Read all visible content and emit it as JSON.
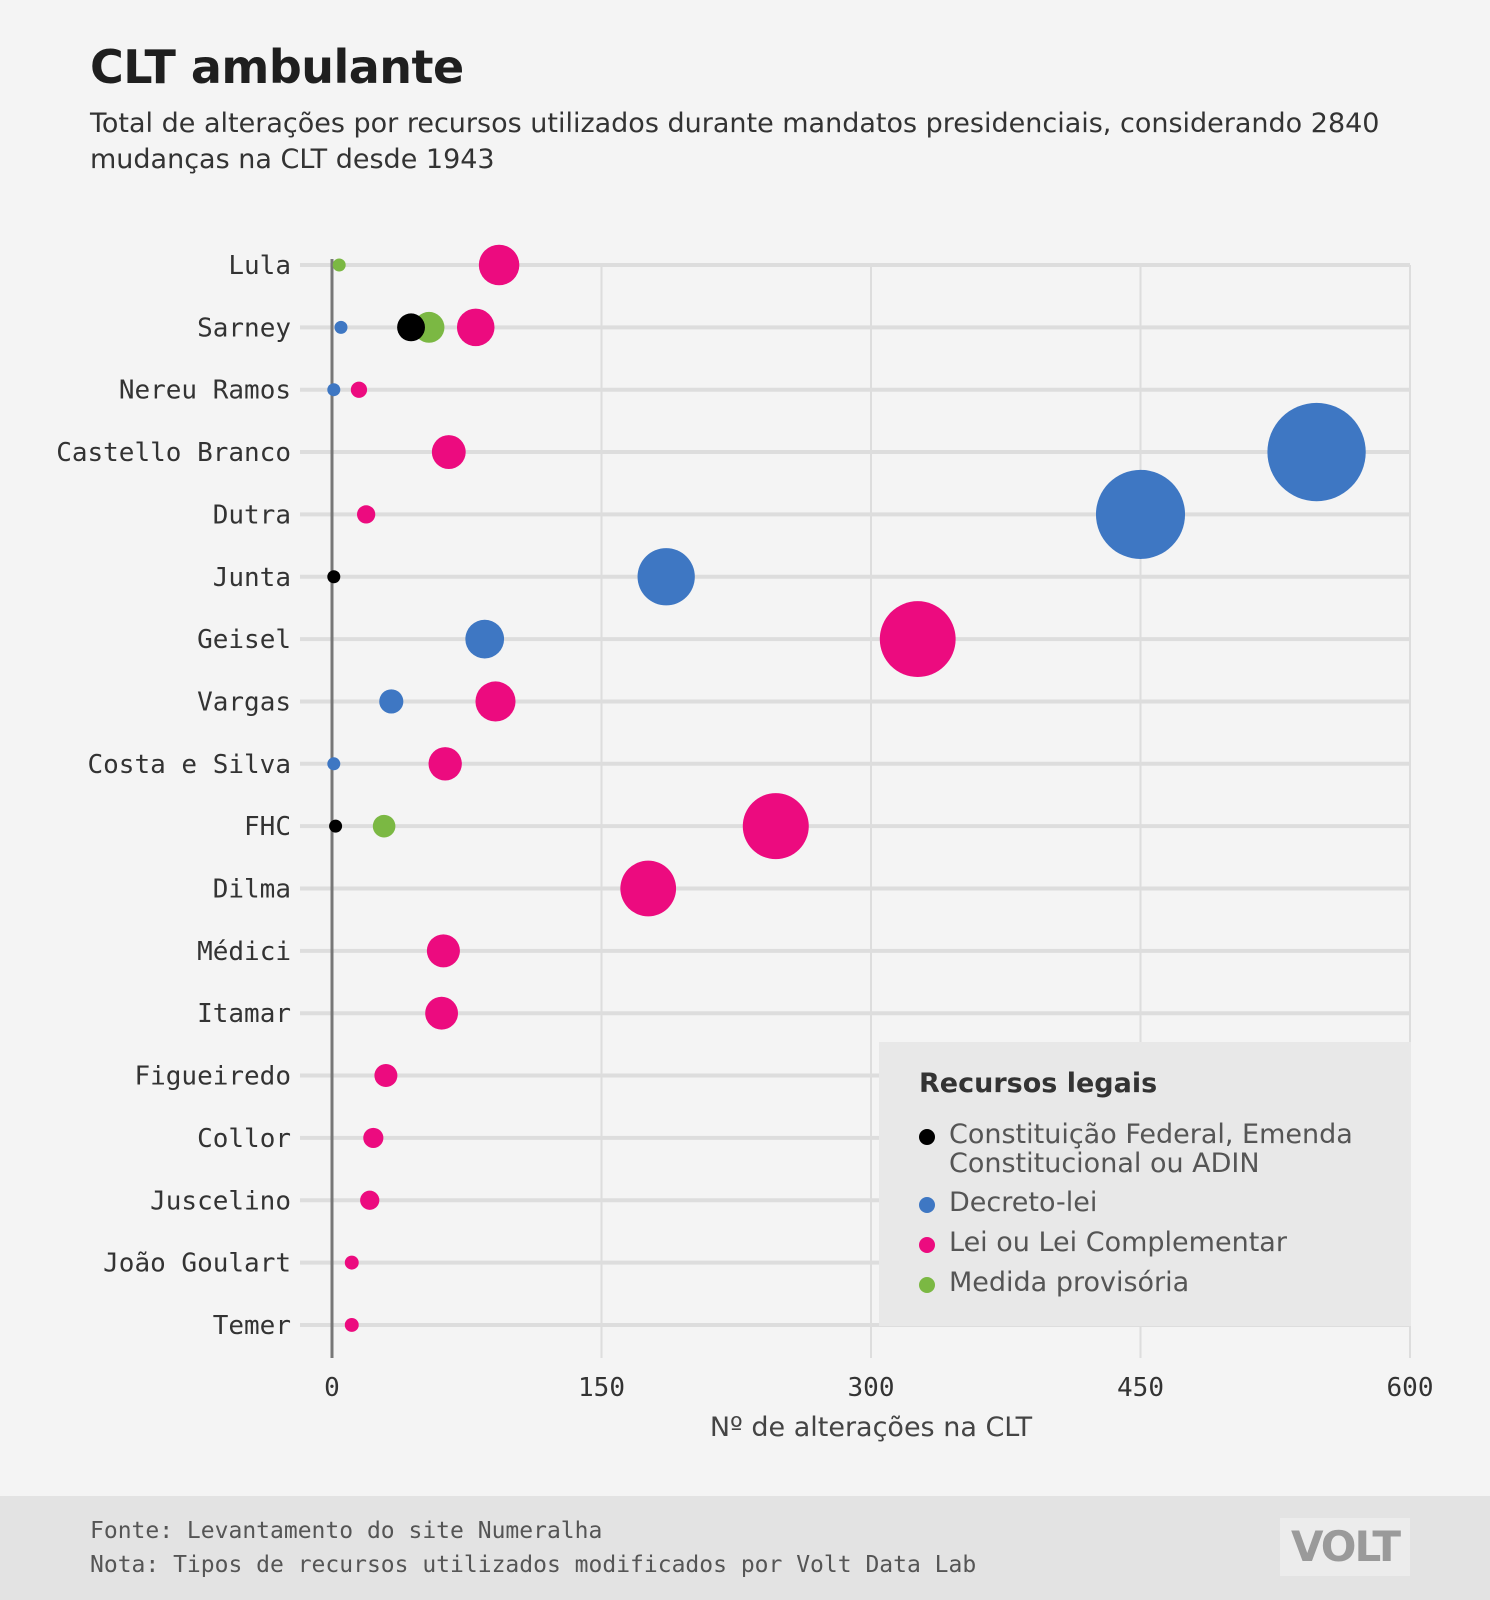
{
  "title": "CLT ambulante",
  "subtitle": "Total de alterações por recursos utilizados durante mandatos presidenciais, considerando 2840 mudanças na CLT desde 1943",
  "legend": {
    "title": "Recursos legais",
    "items": [
      {
        "label": "Constituição Federal, Emenda Constitucional ou ADIN",
        "color": "#000000"
      },
      {
        "label": "Decreto-lei",
        "color": "#3e77c3"
      },
      {
        "label": "Lei ou Lei Complementar",
        "color": "#ec0b7f"
      },
      {
        "label": "Medida provisória",
        "color": "#7bb843"
      }
    ]
  },
  "footer": {
    "source": "Fonte: Levantamento do site Numeralha",
    "note": "Nota: Tipos de recursos utilizados modificados por Volt Data Lab",
    "logo": "VOLT"
  },
  "chart_data": {
    "type": "scatter",
    "xlabel": "Nº de alterações na CLT",
    "xlim": [
      0,
      600
    ],
    "xticks": [
      0,
      150,
      300,
      450,
      600
    ],
    "legend_placement": "bottom-right",
    "grid": true,
    "categories": [
      "Lula",
      "Sarney",
      "Nereu Ramos",
      "Castello Branco",
      "Dutra",
      "Junta",
      "Geisel",
      "Vargas",
      "Costa e Silva",
      "FHC",
      "Dilma",
      "Médici",
      "Itamar",
      "Figueiredo",
      "Collor",
      "Juscelino",
      "João Goulart",
      "Temer"
    ],
    "series": [
      {
        "name": "Constituição Federal, Emenda Constitucional ou ADIN",
        "color": "#000000",
        "values": [
          null,
          44,
          null,
          null,
          null,
          1,
          null,
          null,
          null,
          2,
          null,
          null,
          null,
          null,
          null,
          null,
          null,
          null
        ]
      },
      {
        "name": "Decreto-lei",
        "color": "#3e77c3",
        "values": [
          null,
          5,
          1,
          548,
          450,
          186,
          85,
          33,
          1,
          null,
          null,
          null,
          null,
          null,
          null,
          null,
          null,
          null
        ]
      },
      {
        "name": "Lei ou Lei Complementar",
        "color": "#ec0b7f",
        "values": [
          93,
          80,
          15,
          65,
          19,
          null,
          326,
          91,
          63,
          247,
          176,
          62,
          61,
          30,
          23,
          21,
          11,
          11
        ]
      },
      {
        "name": "Medida provisória",
        "color": "#7bb843",
        "values": [
          4,
          54,
          null,
          null,
          null,
          null,
          null,
          null,
          null,
          29,
          null,
          null,
          null,
          null,
          null,
          null,
          null,
          null
        ]
      }
    ]
  }
}
